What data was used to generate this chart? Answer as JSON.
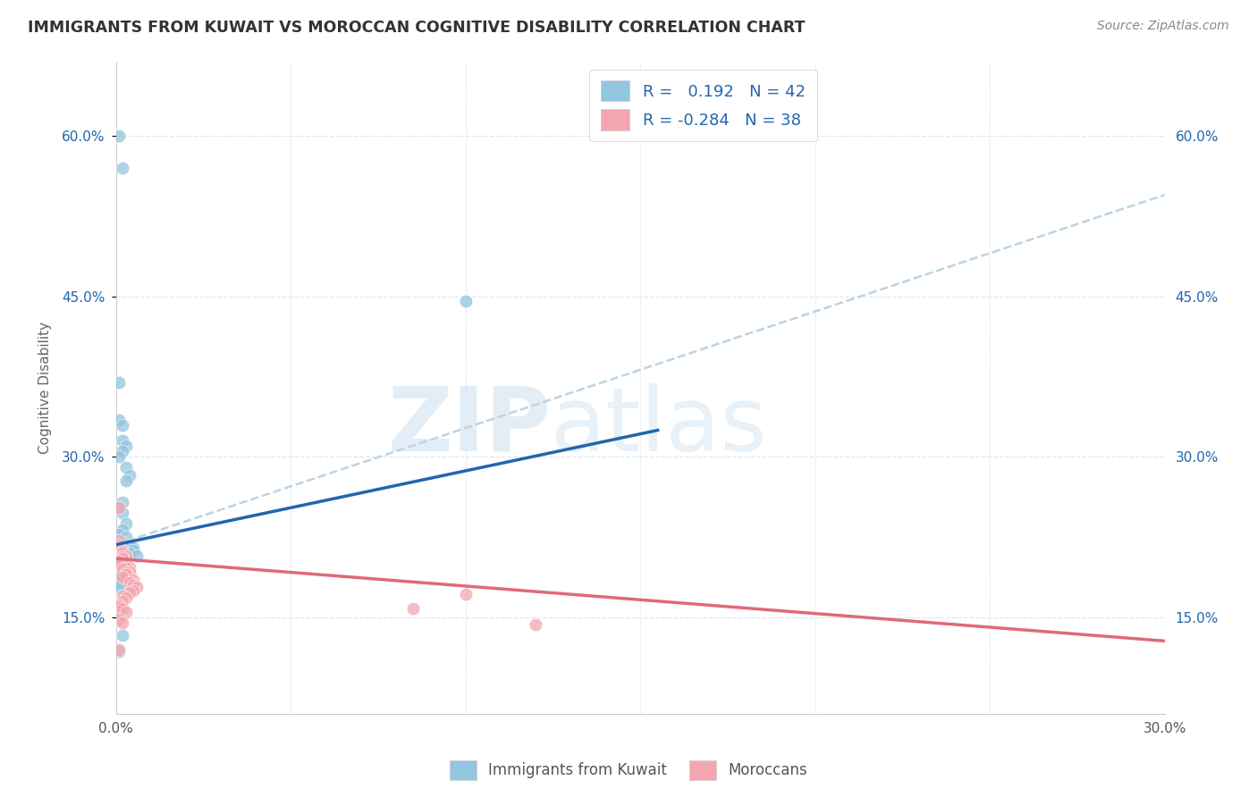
{
  "title": "IMMIGRANTS FROM KUWAIT VS MOROCCAN COGNITIVE DISABILITY CORRELATION CHART",
  "source": "Source: ZipAtlas.com",
  "ylabel": "Cognitive Disability",
  "watermark_part1": "ZIP",
  "watermark_part2": "atlas",
  "xlim": [
    0.0,
    0.3
  ],
  "ylim": [
    0.06,
    0.67
  ],
  "yticks": [
    0.15,
    0.3,
    0.45,
    0.6
  ],
  "ytick_labels": [
    "15.0%",
    "30.0%",
    "45.0%",
    "60.0%"
  ],
  "legend_r1": "R =   0.192",
  "legend_n1": "N = 42",
  "legend_r2": "R = -0.284",
  "legend_n2": "N = 38",
  "blue_color": "#92c5de",
  "pink_color": "#f4a6b0",
  "blue_line_color": "#2166ac",
  "pink_line_color": "#e0697a",
  "dashed_line_color": "#b8d4e8",
  "background_color": "#ffffff",
  "grid_color": "#dce8f0",
  "blue_line_x": [
    0.0,
    0.155
  ],
  "blue_line_y": [
    0.218,
    0.325
  ],
  "pink_line_x": [
    0.0,
    0.3
  ],
  "pink_line_y": [
    0.205,
    0.128
  ],
  "dashed_line_x": [
    0.0,
    0.3
  ],
  "dashed_line_y": [
    0.218,
    0.545
  ],
  "kuwait_x": [
    0.001,
    0.002,
    0.001,
    0.001,
    0.002,
    0.002,
    0.003,
    0.002,
    0.001,
    0.003,
    0.004,
    0.003,
    0.002,
    0.001,
    0.002,
    0.003,
    0.002,
    0.001,
    0.003,
    0.002,
    0.004,
    0.005,
    0.005,
    0.004,
    0.006,
    0.003,
    0.003,
    0.002,
    0.001,
    0.001,
    0.002,
    0.002,
    0.001,
    0.001,
    0.001,
    0.001,
    0.1,
    0.001,
    0.001,
    0.001,
    0.002,
    0.001
  ],
  "kuwait_y": [
    0.6,
    0.57,
    0.37,
    0.335,
    0.33,
    0.315,
    0.31,
    0.305,
    0.3,
    0.29,
    0.283,
    0.278,
    0.258,
    0.253,
    0.248,
    0.238,
    0.232,
    0.228,
    0.225,
    0.22,
    0.218,
    0.215,
    0.213,
    0.21,
    0.208,
    0.207,
    0.205,
    0.203,
    0.2,
    0.198,
    0.195,
    0.192,
    0.19,
    0.188,
    0.183,
    0.178,
    0.446,
    0.162,
    0.158,
    0.153,
    0.133,
    0.118
  ],
  "moroccan_x": [
    0.001,
    0.001,
    0.001,
    0.002,
    0.002,
    0.003,
    0.002,
    0.002,
    0.001,
    0.001,
    0.003,
    0.004,
    0.003,
    0.002,
    0.004,
    0.003,
    0.003,
    0.002,
    0.005,
    0.004,
    0.005,
    0.006,
    0.005,
    0.004,
    0.002,
    0.003,
    0.002,
    0.1,
    0.001,
    0.001,
    0.002,
    0.003,
    0.085,
    0.001,
    0.002,
    0.001,
    0.12,
    0.001
  ],
  "moroccan_y": [
    0.222,
    0.218,
    0.215,
    0.212,
    0.21,
    0.208,
    0.207,
    0.205,
    0.203,
    0.2,
    0.198,
    0.197,
    0.196,
    0.195,
    0.193,
    0.192,
    0.19,
    0.188,
    0.185,
    0.183,
    0.18,
    0.178,
    0.175,
    0.173,
    0.17,
    0.168,
    0.165,
    0.172,
    0.162,
    0.16,
    0.158,
    0.155,
    0.158,
    0.148,
    0.145,
    0.253,
    0.143,
    0.12
  ]
}
